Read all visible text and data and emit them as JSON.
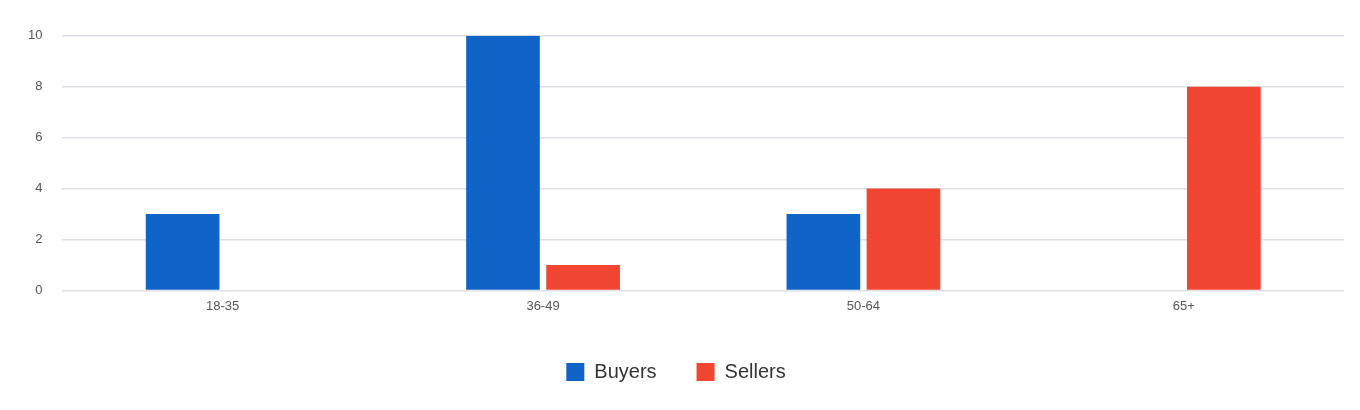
{
  "chart_data": {
    "type": "bar",
    "categories": [
      "18-35",
      "36-49",
      "50-64",
      "65+"
    ],
    "series": [
      {
        "name": "Buyers",
        "color": "#1064c8",
        "values": [
          3,
          10,
          3,
          0
        ]
      },
      {
        "name": "Sellers",
        "color": "#f04632",
        "values": [
          0,
          1,
          4,
          8
        ]
      }
    ],
    "ylim": [
      0,
      10
    ],
    "yticks": [
      0,
      2,
      4,
      6,
      8,
      10
    ],
    "grid": "y",
    "legend": "bottom"
  }
}
